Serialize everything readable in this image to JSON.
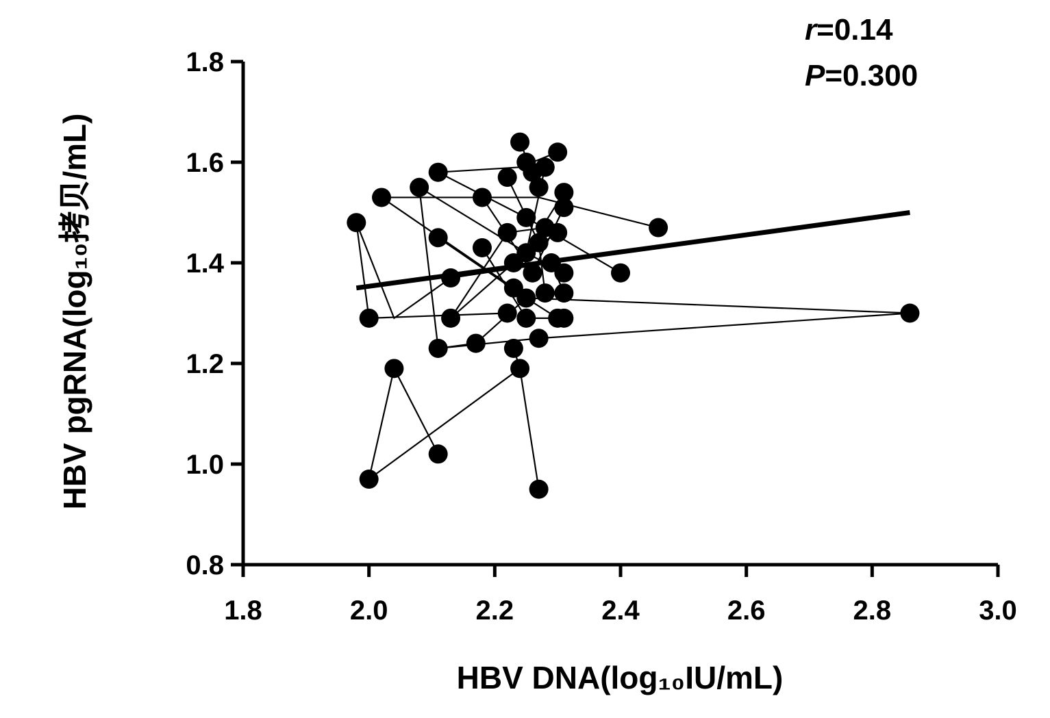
{
  "chart_data": {
    "type": "scatter",
    "title": "",
    "xlabel": "HBV DNA(log₁₀IU/mL)",
    "ylabel": "HBV pgRNA(log₁₀拷贝/mL)",
    "xlim": [
      1.8,
      3.0
    ],
    "ylim": [
      0.8,
      1.8
    ],
    "x_ticks": [
      1.8,
      2.0,
      2.2,
      2.4,
      2.6,
      2.8,
      3.0
    ],
    "y_ticks": [
      0.8,
      1.0,
      1.2,
      1.4,
      1.6,
      1.8
    ],
    "x_tick_labels": [
      "1.8",
      "2.0",
      "2.2",
      "2.4",
      "2.6",
      "2.8",
      "3.0"
    ],
    "y_tick_labels": [
      "0.8",
      "1.0",
      "1.2",
      "1.4",
      "1.6",
      "1.8"
    ],
    "grid": false,
    "annotations": {
      "r_symbol": "r",
      "r_value": "=0.14",
      "p_symbol": "P",
      "p_value": "=0.300"
    },
    "regression_line": {
      "x": [
        1.98,
        2.86
      ],
      "y": [
        1.35,
        1.5
      ]
    },
    "points": [
      {
        "x": 1.98,
        "y": 1.48
      },
      {
        "x": 2.0,
        "y": 1.29
      },
      {
        "x": 2.0,
        "y": 0.97
      },
      {
        "x": 2.02,
        "y": 1.53
      },
      {
        "x": 2.04,
        "y": 1.19
      },
      {
        "x": 2.08,
        "y": 1.55
      },
      {
        "x": 2.11,
        "y": 1.58
      },
      {
        "x": 2.11,
        "y": 1.45
      },
      {
        "x": 2.11,
        "y": 1.23
      },
      {
        "x": 2.11,
        "y": 1.02
      },
      {
        "x": 2.13,
        "y": 1.37
      },
      {
        "x": 2.13,
        "y": 1.29
      },
      {
        "x": 2.17,
        "y": 1.24
      },
      {
        "x": 2.18,
        "y": 1.53
      },
      {
        "x": 2.18,
        "y": 1.43
      },
      {
        "x": 2.22,
        "y": 1.57
      },
      {
        "x": 2.22,
        "y": 1.46
      },
      {
        "x": 2.22,
        "y": 1.3
      },
      {
        "x": 2.23,
        "y": 1.4
      },
      {
        "x": 2.23,
        "y": 1.35
      },
      {
        "x": 2.23,
        "y": 1.23
      },
      {
        "x": 2.24,
        "y": 1.64
      },
      {
        "x": 2.24,
        "y": 1.19
      },
      {
        "x": 2.25,
        "y": 1.6
      },
      {
        "x": 2.25,
        "y": 1.49
      },
      {
        "x": 2.25,
        "y": 1.42
      },
      {
        "x": 2.25,
        "y": 1.33
      },
      {
        "x": 2.25,
        "y": 1.29
      },
      {
        "x": 2.26,
        "y": 1.58
      },
      {
        "x": 2.26,
        "y": 1.38
      },
      {
        "x": 2.27,
        "y": 1.55
      },
      {
        "x": 2.27,
        "y": 1.44
      },
      {
        "x": 2.27,
        "y": 1.25
      },
      {
        "x": 2.27,
        "y": 0.95
      },
      {
        "x": 2.28,
        "y": 1.59
      },
      {
        "x": 2.28,
        "y": 1.47
      },
      {
        "x": 2.28,
        "y": 1.34
      },
      {
        "x": 2.29,
        "y": 1.4
      },
      {
        "x": 2.3,
        "y": 1.62
      },
      {
        "x": 2.3,
        "y": 1.46
      },
      {
        "x": 2.3,
        "y": 1.29
      },
      {
        "x": 2.31,
        "y": 1.54
      },
      {
        "x": 2.31,
        "y": 1.51
      },
      {
        "x": 2.31,
        "y": 1.38
      },
      {
        "x": 2.31,
        "y": 1.34
      },
      {
        "x": 2.31,
        "y": 1.29
      },
      {
        "x": 2.4,
        "y": 1.38
      },
      {
        "x": 2.46,
        "y": 1.47
      },
      {
        "x": 2.86,
        "y": 1.3
      }
    ],
    "connecting_lines": [
      {
        "points": [
          {
            "x": 1.98,
            "y": 1.48
          },
          {
            "x": 2.0,
            "y": 1.29
          }
        ]
      },
      {
        "points": [
          {
            "x": 1.98,
            "y": 1.48
          },
          {
            "x": 2.04,
            "y": 1.29
          },
          {
            "x": 2.13,
            "y": 1.37
          }
        ]
      },
      {
        "points": [
          {
            "x": 2.0,
            "y": 1.29
          },
          {
            "x": 2.22,
            "y": 1.3
          }
        ]
      },
      {
        "points": [
          {
            "x": 2.0,
            "y": 0.97
          },
          {
            "x": 2.04,
            "y": 1.19
          },
          {
            "x": 2.11,
            "y": 1.02
          }
        ]
      },
      {
        "points": [
          {
            "x": 2.0,
            "y": 0.97
          },
          {
            "x": 2.24,
            "y": 1.19
          },
          {
            "x": 2.27,
            "y": 0.95
          }
        ]
      },
      {
        "points": [
          {
            "x": 2.24,
            "y": 1.19
          },
          {
            "x": 2.23,
            "y": 1.23
          }
        ]
      },
      {
        "points": [
          {
            "x": 2.02,
            "y": 1.53
          },
          {
            "x": 2.23,
            "y": 1.35
          }
        ]
      },
      {
        "points": [
          {
            "x": 2.02,
            "y": 1.53
          },
          {
            "x": 2.27,
            "y": 1.53
          },
          {
            "x": 2.46,
            "y": 1.47
          }
        ]
      },
      {
        "points": [
          {
            "x": 2.08,
            "y": 1.55
          },
          {
            "x": 2.11,
            "y": 1.23
          },
          {
            "x": 2.17,
            "y": 1.24
          }
        ]
      },
      {
        "points": [
          {
            "x": 2.08,
            "y": 1.55
          },
          {
            "x": 2.25,
            "y": 1.42
          },
          {
            "x": 2.31,
            "y": 1.54
          }
        ]
      },
      {
        "points": [
          {
            "x": 2.11,
            "y": 1.58
          },
          {
            "x": 2.24,
            "y": 1.59
          },
          {
            "x": 2.3,
            "y": 1.62
          }
        ]
      },
      {
        "points": [
          {
            "x": 2.11,
            "y": 1.58
          },
          {
            "x": 2.25,
            "y": 1.49
          },
          {
            "x": 2.4,
            "y": 1.38
          }
        ]
      },
      {
        "points": [
          {
            "x": 2.11,
            "y": 1.45
          },
          {
            "x": 2.25,
            "y": 1.33
          },
          {
            "x": 2.86,
            "y": 1.3
          }
        ]
      },
      {
        "points": [
          {
            "x": 2.11,
            "y": 1.23
          },
          {
            "x": 2.27,
            "y": 1.25
          },
          {
            "x": 2.86,
            "y": 1.3
          }
        ]
      },
      {
        "points": [
          {
            "x": 2.13,
            "y": 1.29
          },
          {
            "x": 2.22,
            "y": 1.46
          },
          {
            "x": 2.28,
            "y": 1.47
          }
        ]
      },
      {
        "points": [
          {
            "x": 2.13,
            "y": 1.29
          },
          {
            "x": 2.23,
            "y": 1.4
          },
          {
            "x": 2.3,
            "y": 1.46
          }
        ]
      },
      {
        "points": [
          {
            "x": 2.13,
            "y": 1.37
          },
          {
            "x": 2.29,
            "y": 1.4
          },
          {
            "x": 2.31,
            "y": 1.34
          }
        ]
      },
      {
        "points": [
          {
            "x": 2.18,
            "y": 1.43
          },
          {
            "x": 2.25,
            "y": 1.29
          },
          {
            "x": 2.31,
            "y": 1.29
          }
        ]
      },
      {
        "points": [
          {
            "x": 2.18,
            "y": 1.53
          },
          {
            "x": 2.26,
            "y": 1.38
          },
          {
            "x": 2.31,
            "y": 1.51
          }
        ]
      },
      {
        "points": [
          {
            "x": 2.22,
            "y": 1.57
          },
          {
            "x": 2.27,
            "y": 1.44
          },
          {
            "x": 2.28,
            "y": 1.34
          }
        ]
      },
      {
        "points": [
          {
            "x": 2.17,
            "y": 1.24
          },
          {
            "x": 2.25,
            "y": 1.33
          },
          {
            "x": 2.3,
            "y": 1.29
          }
        ]
      },
      {
        "points": [
          {
            "x": 2.24,
            "y": 1.64
          },
          {
            "x": 2.26,
            "y": 1.58
          },
          {
            "x": 2.27,
            "y": 1.55
          }
        ]
      },
      {
        "points": [
          {
            "x": 2.28,
            "y": 1.59
          },
          {
            "x": 2.25,
            "y": 1.42
          },
          {
            "x": 2.31,
            "y": 1.38
          }
        ]
      }
    ]
  }
}
